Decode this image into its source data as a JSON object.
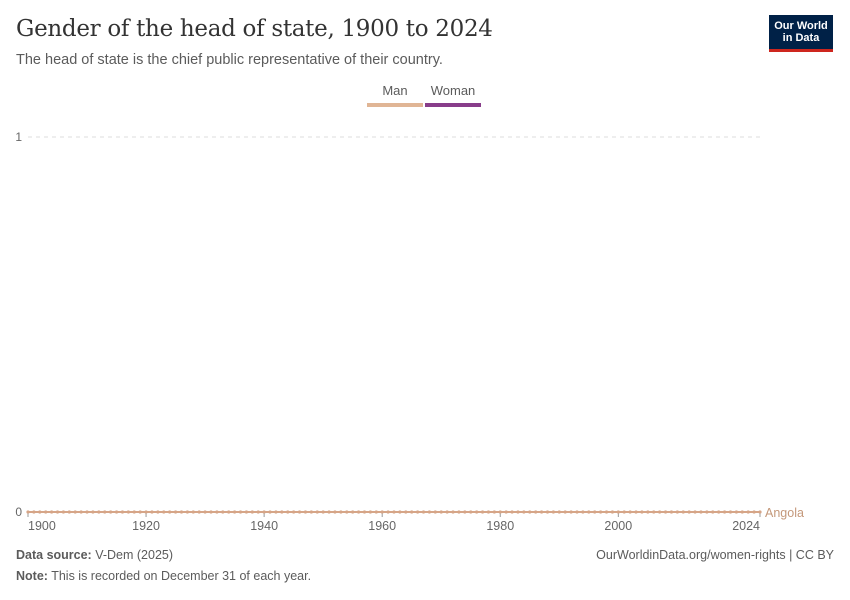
{
  "header": {
    "title": "Gender of the head of state, 1900 to 2024",
    "subtitle": "The head of state is the chief public representative of their country.",
    "logo": "Our World in Data"
  },
  "legend": [
    {
      "label": "Man",
      "color": "#e0b595"
    },
    {
      "label": "Woman",
      "color": "#883d8a"
    }
  ],
  "chart_data": {
    "type": "line",
    "title": "Gender of the head of state, 1900 to 2024",
    "xlim": [
      1900,
      2024
    ],
    "ylim": [
      0,
      1
    ],
    "x_ticks": [
      "1900",
      "1920",
      "1940",
      "1960",
      "1980",
      "2000",
      "2024"
    ],
    "y_ticks": [
      "0",
      "1"
    ],
    "series": [
      {
        "name": "Angola",
        "color": "#d6a587",
        "x_start": 1900,
        "x_end": 2024,
        "value": 0,
        "category": "Man"
      }
    ]
  },
  "footer": {
    "source_label": "Data source:",
    "source": "V-Dem (2025)",
    "note_label": "Note:",
    "note": "This is recorded on December 31 of each year.",
    "url": "OurWorldinData.org/women-rights | CC BY"
  }
}
